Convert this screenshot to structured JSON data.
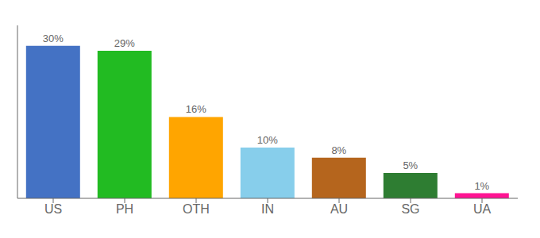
{
  "chart_data": {
    "type": "bar",
    "categories": [
      "US",
      "PH",
      "OTH",
      "IN",
      "AU",
      "SG",
      "UA"
    ],
    "values": [
      30,
      29,
      16,
      10,
      8,
      5,
      1
    ],
    "value_labels": [
      "30%",
      "29%",
      "16%",
      "10%",
      "8%",
      "5%",
      "1%"
    ],
    "colors": [
      "#4472c4",
      "#22bb22",
      "#ffa500",
      "#87ceeb",
      "#b5651d",
      "#2e7d32",
      "#ff1493"
    ],
    "ylim": [
      0,
      34
    ],
    "data_labels": true,
    "tick_labels": "x",
    "grid": false
  }
}
